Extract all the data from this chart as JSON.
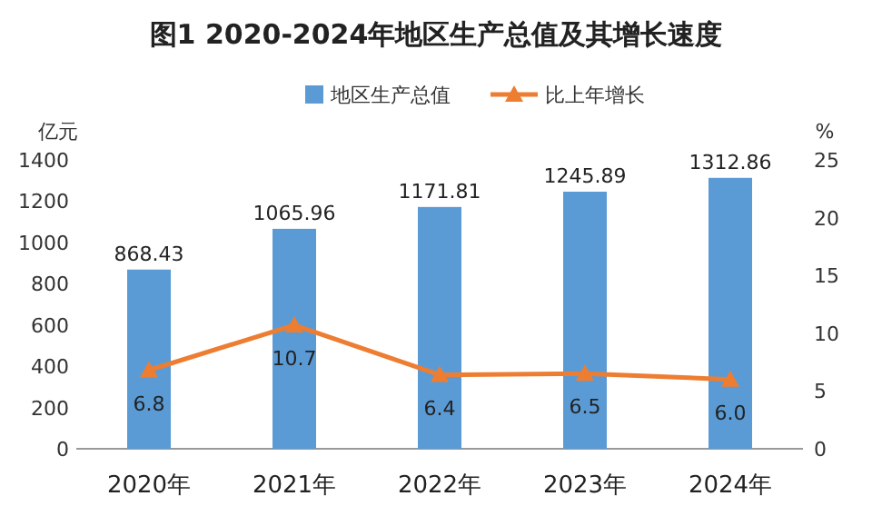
{
  "chart_data": {
    "type": "bar",
    "title": "图1 2020-2024年地区生产总值及其增长速度",
    "ylabel": "亿元",
    "y2label": "%",
    "categories": [
      "2020年",
      "2021年",
      "2022年",
      "2023年",
      "2024年"
    ],
    "series": [
      {
        "name": "地区生产总值",
        "color": "#5b9bd5",
        "values": [
          868.43,
          1065.96,
          1171.81,
          1245.89,
          1312.86
        ]
      },
      {
        "name": "比上年增长",
        "type": "line",
        "axis": "y2",
        "color": "#ed7d31",
        "marker": "triangle",
        "values": [
          6.8,
          10.7,
          6.4,
          6.5,
          6.0
        ],
        "value_labels": [
          "6.8",
          "10.7",
          "6.4",
          "6.5",
          "6.0"
        ]
      }
    ],
    "ylim": [
      0,
      1400
    ],
    "yticks": [
      0,
      200,
      400,
      600,
      800,
      1000,
      1200,
      1400
    ],
    "y2lim": [
      0,
      25
    ],
    "y2ticks": [
      0,
      5,
      10,
      15,
      20,
      25
    ],
    "data_labels": true,
    "legend": "top",
    "grid": false
  }
}
